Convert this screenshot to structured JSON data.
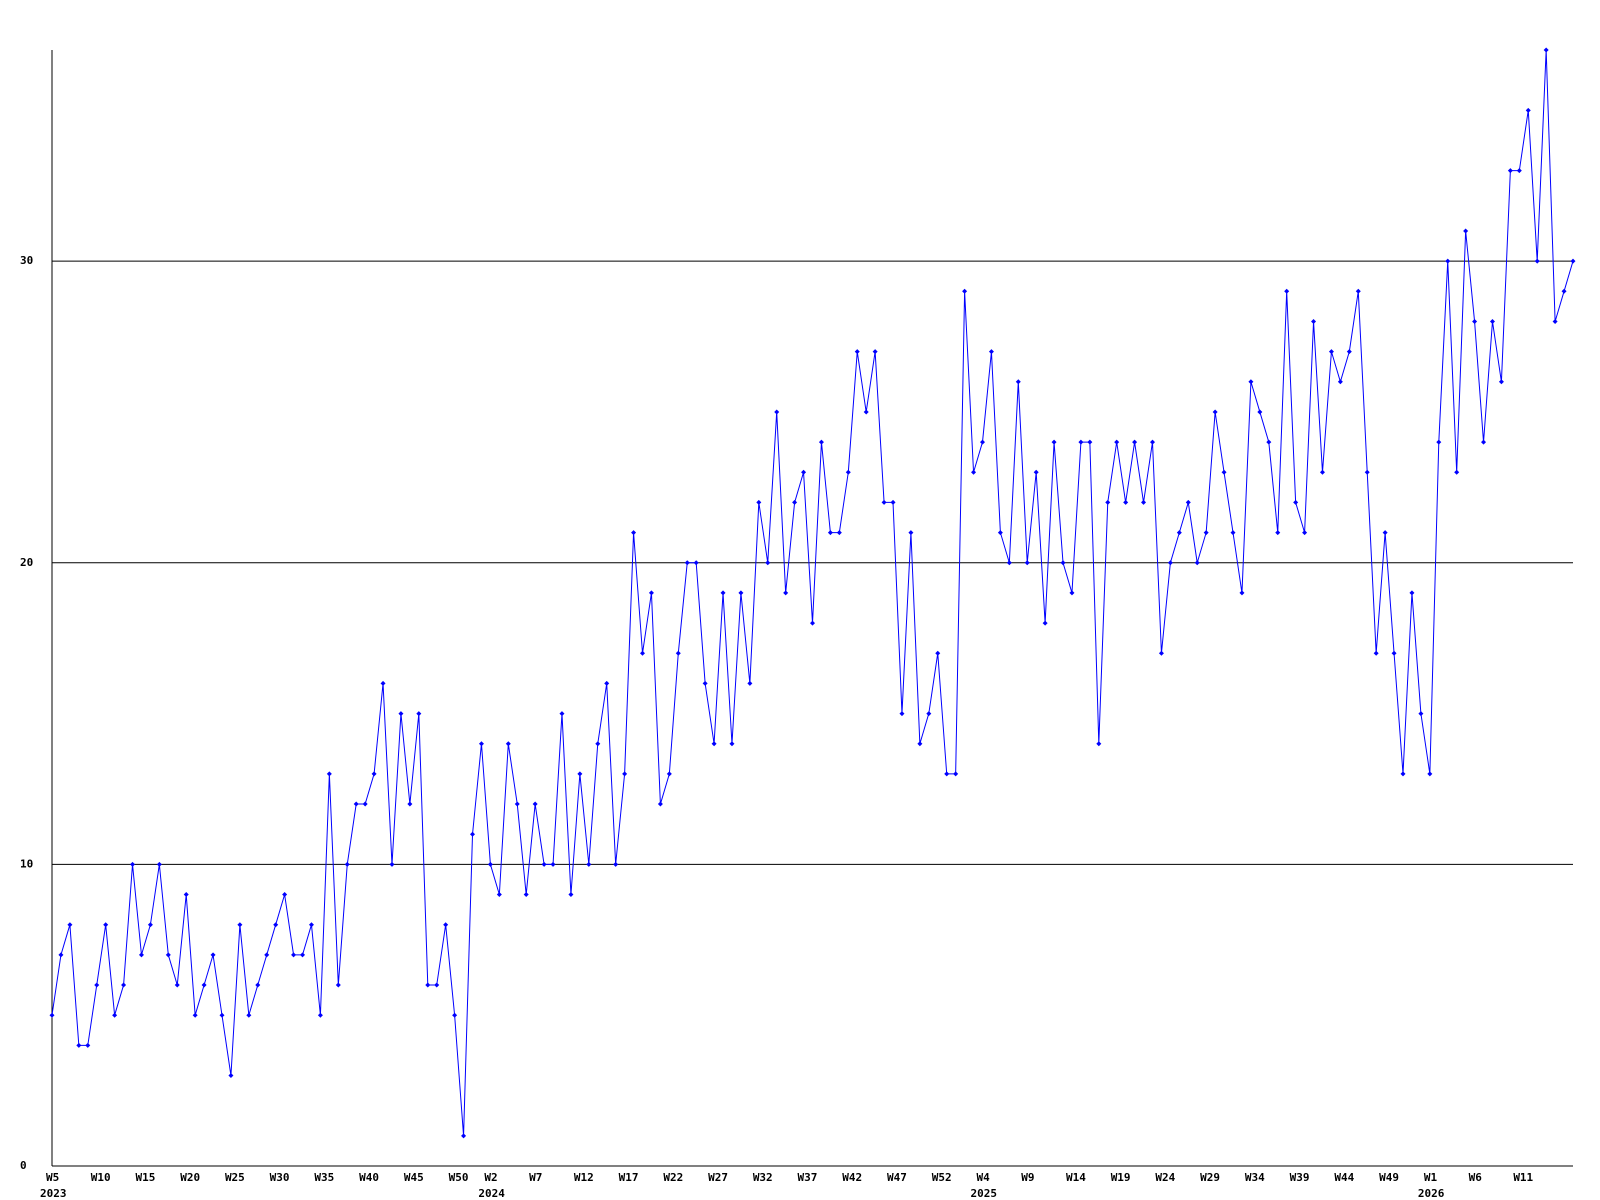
{
  "chart_data": {
    "type": "line",
    "categories": [
      "W5",
      null,
      null,
      null,
      null,
      "W10",
      null,
      null,
      null,
      null,
      "W15",
      null,
      null,
      null,
      null,
      "W20",
      null,
      null,
      null,
      null,
      "W25",
      null,
      null,
      null,
      null,
      "W30",
      null,
      null,
      null,
      null,
      "W35",
      null,
      null,
      null,
      null,
      "W40",
      null,
      null,
      null,
      null,
      "W45",
      null,
      null,
      null,
      null,
      "W50",
      null,
      null,
      null,
      "W2",
      null,
      null,
      null,
      null,
      "W7",
      null,
      null,
      null,
      null,
      "W12",
      null,
      null,
      null,
      null,
      "W17",
      null,
      null,
      null,
      null,
      "W22",
      null,
      null,
      null,
      null,
      "W27",
      null,
      null,
      null,
      null,
      "W32",
      null,
      null,
      null,
      null,
      "W37",
      null,
      null,
      null,
      null,
      "W42",
      null,
      null,
      null,
      null,
      "W47",
      null,
      null,
      null,
      null,
      "W52",
      null,
      null,
      null,
      null,
      "W4",
      null,
      null,
      null,
      null,
      "W9",
      null,
      null,
      null,
      null,
      "W14",
      null,
      null,
      null,
      null,
      "W19",
      null,
      null,
      null,
      null,
      "W24",
      null,
      null,
      null,
      null,
      "W29",
      null,
      null,
      null,
      null,
      "W34",
      null,
      null,
      null,
      null,
      "W39",
      null,
      null,
      null,
      null,
      "W44",
      null,
      null,
      null,
      null,
      "W49",
      null,
      null,
      null,
      null,
      "W1",
      null,
      null,
      null,
      null,
      "W6",
      null,
      null,
      null,
      null,
      "W11",
      null,
      null,
      null,
      null,
      null,
      null
    ],
    "x_year_labels": [
      {
        "label": "2023",
        "index": 0
      },
      {
        "label": "2024",
        "index": 49
      },
      {
        "label": "2025",
        "index": 104
      },
      {
        "label": "2026",
        "index": 154
      }
    ],
    "values": [
      5,
      7,
      8,
      4,
      4,
      6,
      8,
      5,
      6,
      10,
      7,
      8,
      10,
      7,
      6,
      9,
      5,
      6,
      7,
      5,
      3,
      8,
      5,
      6,
      7,
      8,
      9,
      7,
      7,
      8,
      5,
      13,
      6,
      10,
      12,
      12,
      13,
      16,
      10,
      15,
      12,
      15,
      6,
      6,
      8,
      5,
      1,
      11,
      14,
      10,
      9,
      14,
      12,
      9,
      12,
      10,
      10,
      15,
      9,
      13,
      10,
      14,
      16,
      10,
      13,
      21,
      17,
      19,
      12,
      13,
      17,
      20,
      20,
      16,
      14,
      19,
      14,
      19,
      16,
      22,
      20,
      25,
      19,
      22,
      23,
      18,
      24,
      21,
      21,
      23,
      27,
      25,
      27,
      22,
      22,
      15,
      21,
      14,
      15,
      17,
      13,
      13,
      29,
      23,
      24,
      27,
      21,
      20,
      26,
      20,
      23,
      18,
      24,
      20,
      19,
      24,
      24,
      14,
      22,
      24,
      22,
      24,
      22,
      24,
      17,
      20,
      21,
      22,
      20,
      21,
      25,
      23,
      21,
      19,
      26,
      25,
      24,
      21,
      29,
      22,
      21,
      28,
      23,
      27,
      26,
      27,
      29,
      23,
      17,
      21,
      17,
      13,
      19,
      15,
      13,
      24,
      30,
      23,
      31,
      28,
      24,
      28,
      26,
      33,
      33,
      35,
      30,
      37,
      28,
      29,
      30
    ],
    "color": "#0000ff",
    "ylim": [
      0,
      37
    ],
    "yticks": [
      0,
      10,
      20,
      30
    ],
    "grid": true
  }
}
